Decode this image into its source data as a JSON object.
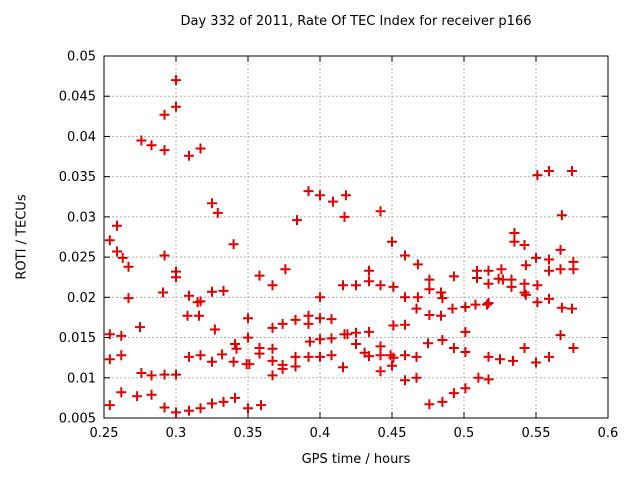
{
  "chart_data": {
    "type": "scatter",
    "title": "Day 332 of 2011, Rate Of TEC Index for receiver p166",
    "xlabel": "GPS time / hours",
    "ylabel": "ROTI / TECUs",
    "xlim": [
      0.25,
      0.6
    ],
    "ylim": [
      0.005,
      0.05
    ],
    "xticks": [
      0.25,
      0.3,
      0.35,
      0.4,
      0.45,
      0.5,
      0.55,
      0.6
    ],
    "xtick_labels": [
      "0.25",
      "0.3",
      "0.35",
      "0.4",
      "0.45",
      "0.5",
      "0.55",
      "0.6"
    ],
    "yticks": [
      0.005,
      0.01,
      0.015,
      0.02,
      0.025,
      0.03,
      0.035,
      0.04,
      0.045,
      0.05
    ],
    "ytick_labels": [
      "0.005",
      "0.01",
      "0.015",
      "0.02",
      "0.025",
      "0.03",
      "0.035",
      "0.04",
      "0.045",
      "0.05"
    ],
    "grid": true,
    "legend_position": "none",
    "marker": "plus",
    "marker_color": "#e00000",
    "grid_color": "#b0b0b0",
    "frame_color": "#000000",
    "background": "#ffffff",
    "points": [
      [
        0.3,
        0.047
      ],
      [
        0.3,
        0.0437
      ],
      [
        0.292,
        0.0427
      ],
      [
        0.276,
        0.0395
      ],
      [
        0.283,
        0.0389
      ],
      [
        0.292,
        0.0383
      ],
      [
        0.309,
        0.0376
      ],
      [
        0.317,
        0.0385
      ],
      [
        0.551,
        0.0352
      ],
      [
        0.559,
        0.0357
      ],
      [
        0.575,
        0.0357
      ],
      [
        0.259,
        0.0289
      ],
      [
        0.254,
        0.0271
      ],
      [
        0.259,
        0.0257
      ],
      [
        0.263,
        0.0249
      ],
      [
        0.267,
        0.0238
      ],
      [
        0.292,
        0.0252
      ],
      [
        0.3,
        0.0232
      ],
      [
        0.3,
        0.0225
      ],
      [
        0.325,
        0.0317
      ],
      [
        0.329,
        0.0305
      ],
      [
        0.34,
        0.0266
      ],
      [
        0.291,
        0.0206
      ],
      [
        0.267,
        0.0199
      ],
      [
        0.309,
        0.0202
      ],
      [
        0.317,
        0.0195
      ],
      [
        0.325,
        0.0207
      ],
      [
        0.333,
        0.0208
      ],
      [
        0.392,
        0.0332
      ],
      [
        0.4,
        0.0327
      ],
      [
        0.409,
        0.0319
      ],
      [
        0.418,
        0.0327
      ],
      [
        0.417,
        0.03
      ],
      [
        0.384,
        0.0296
      ],
      [
        0.358,
        0.0227
      ],
      [
        0.367,
        0.0215
      ],
      [
        0.376,
        0.0235
      ],
      [
        0.416,
        0.0215
      ],
      [
        0.425,
        0.0215
      ],
      [
        0.4,
        0.02
      ],
      [
        0.442,
        0.0307
      ],
      [
        0.45,
        0.0269
      ],
      [
        0.459,
        0.0252
      ],
      [
        0.468,
        0.0241
      ],
      [
        0.434,
        0.0233
      ],
      [
        0.434,
        0.022
      ],
      [
        0.442,
        0.0215
      ],
      [
        0.451,
        0.0213
      ],
      [
        0.476,
        0.0222
      ],
      [
        0.476,
        0.021
      ],
      [
        0.493,
        0.0226
      ],
      [
        0.484,
        0.0206
      ],
      [
        0.459,
        0.02
      ],
      [
        0.468,
        0.02
      ],
      [
        0.485,
        0.0199
      ],
      [
        0.568,
        0.0302
      ],
      [
        0.535,
        0.028
      ],
      [
        0.535,
        0.0269
      ],
      [
        0.542,
        0.0265
      ],
      [
        0.567,
        0.0259
      ],
      [
        0.55,
        0.0249
      ],
      [
        0.559,
        0.0247
      ],
      [
        0.543,
        0.024
      ],
      [
        0.559,
        0.0233
      ],
      [
        0.567,
        0.0235
      ],
      [
        0.576,
        0.0244
      ],
      [
        0.576,
        0.0235
      ],
      [
        0.509,
        0.0233
      ],
      [
        0.509,
        0.0224
      ],
      [
        0.517,
        0.0233
      ],
      [
        0.517,
        0.0217
      ],
      [
        0.526,
        0.0235
      ],
      [
        0.524,
        0.0223
      ],
      [
        0.527,
        0.0222
      ],
      [
        0.533,
        0.0222
      ],
      [
        0.533,
        0.0213
      ],
      [
        0.542,
        0.0217
      ],
      [
        0.542,
        0.0206
      ],
      [
        0.551,
        0.0215
      ],
      [
        0.551,
        0.0194
      ],
      [
        0.275,
        0.0163
      ],
      [
        0.254,
        0.0154
      ],
      [
        0.262,
        0.0152
      ],
      [
        0.254,
        0.0123
      ],
      [
        0.262,
        0.0128
      ],
      [
        0.276,
        0.0106
      ],
      [
        0.283,
        0.0103
      ],
      [
        0.292,
        0.0104
      ],
      [
        0.3,
        0.0104
      ],
      [
        0.262,
        0.0082
      ],
      [
        0.273,
        0.0077
      ],
      [
        0.283,
        0.0079
      ],
      [
        0.254,
        0.0066
      ],
      [
        0.292,
        0.0063
      ],
      [
        0.3,
        0.0057
      ],
      [
        0.309,
        0.0059
      ],
      [
        0.317,
        0.0062
      ],
      [
        0.325,
        0.0068
      ],
      [
        0.333,
        0.007
      ],
      [
        0.309,
        0.0126
      ],
      [
        0.317,
        0.0128
      ],
      [
        0.325,
        0.012
      ],
      [
        0.332,
        0.0129
      ],
      [
        0.327,
        0.016
      ],
      [
        0.308,
        0.0177
      ],
      [
        0.316,
        0.0177
      ],
      [
        0.315,
        0.0194
      ],
      [
        0.35,
        0.0174
      ],
      [
        0.367,
        0.0162
      ],
      [
        0.374,
        0.0167
      ],
      [
        0.383,
        0.0172
      ],
      [
        0.392,
        0.0177
      ],
      [
        0.392,
        0.0167
      ],
      [
        0.4,
        0.0174
      ],
      [
        0.408,
        0.0173
      ],
      [
        0.417,
        0.0154
      ],
      [
        0.419,
        0.0154
      ],
      [
        0.425,
        0.0156
      ],
      [
        0.425,
        0.0142
      ],
      [
        0.35,
        0.015
      ],
      [
        0.341,
        0.0142
      ],
      [
        0.342,
        0.0136
      ],
      [
        0.34,
        0.012
      ],
      [
        0.358,
        0.0137
      ],
      [
        0.358,
        0.013
      ],
      [
        0.349,
        0.0117
      ],
      [
        0.351,
        0.0117
      ],
      [
        0.367,
        0.0136
      ],
      [
        0.367,
        0.0121
      ],
      [
        0.374,
        0.0116
      ],
      [
        0.374,
        0.0111
      ],
      [
        0.383,
        0.0126
      ],
      [
        0.383,
        0.0114
      ],
      [
        0.392,
        0.0126
      ],
      [
        0.367,
        0.0103
      ],
      [
        0.4,
        0.0126
      ],
      [
        0.4,
        0.0148
      ],
      [
        0.393,
        0.0145
      ],
      [
        0.408,
        0.0149
      ],
      [
        0.408,
        0.0128
      ],
      [
        0.416,
        0.0113
      ],
      [
        0.341,
        0.0075
      ],
      [
        0.35,
        0.0062
      ],
      [
        0.359,
        0.0066
      ],
      [
        0.492,
        0.0186
      ],
      [
        0.501,
        0.0188
      ],
      [
        0.467,
        0.0186
      ],
      [
        0.476,
        0.0178
      ],
      [
        0.484,
        0.0177
      ],
      [
        0.508,
        0.0191
      ],
      [
        0.516,
        0.0191
      ],
      [
        0.451,
        0.0165
      ],
      [
        0.459,
        0.0166
      ],
      [
        0.434,
        0.0157
      ],
      [
        0.431,
        0.0131
      ],
      [
        0.434,
        0.0127
      ],
      [
        0.442,
        0.0139
      ],
      [
        0.442,
        0.0128
      ],
      [
        0.449,
        0.0128
      ],
      [
        0.451,
        0.0125
      ],
      [
        0.45,
        0.0115
      ],
      [
        0.459,
        0.0128
      ],
      [
        0.467,
        0.0126
      ],
      [
        0.442,
        0.0108
      ],
      [
        0.459,
        0.0097
      ],
      [
        0.467,
        0.01
      ],
      [
        0.476,
        0.0067
      ],
      [
        0.485,
        0.007
      ],
      [
        0.493,
        0.0081
      ],
      [
        0.501,
        0.0087
      ],
      [
        0.475,
        0.0143
      ],
      [
        0.485,
        0.0147
      ],
      [
        0.493,
        0.0137
      ],
      [
        0.501,
        0.0157
      ],
      [
        0.501,
        0.0132
      ],
      [
        0.51,
        0.01
      ],
      [
        0.517,
        0.0098
      ],
      [
        0.517,
        0.0193
      ],
      [
        0.543,
        0.0203
      ],
      [
        0.559,
        0.0198
      ],
      [
        0.568,
        0.0187
      ],
      [
        0.575,
        0.0186
      ],
      [
        0.567,
        0.0153
      ],
      [
        0.576,
        0.0137
      ],
      [
        0.542,
        0.0137
      ],
      [
        0.517,
        0.0126
      ],
      [
        0.525,
        0.0123
      ],
      [
        0.534,
        0.0121
      ],
      [
        0.55,
        0.0119
      ],
      [
        0.559,
        0.0126
      ]
    ]
  }
}
